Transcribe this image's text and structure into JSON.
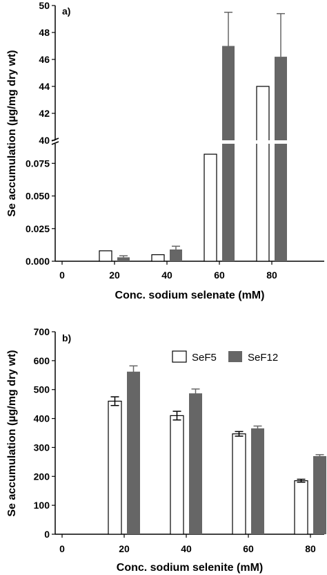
{
  "chart_data": [
    {
      "type": "bar",
      "panel_label": "a)",
      "xlabel": "Conc. sodium selenate (mM)",
      "ylabel": "Se accumulation (µg/mg dry wt)",
      "categories": [
        "0",
        "20",
        "40",
        "60",
        "80"
      ],
      "axis_break": true,
      "y_lower_range": [
        0,
        0.09
      ],
      "y_upper_range": [
        40,
        50
      ],
      "y_lower_ticks": [
        "0.000",
        "0.025",
        "0.050",
        "0.075"
      ],
      "y_upper_ticks": [
        "40",
        "42",
        "44",
        "46",
        "48",
        "50"
      ],
      "series": [
        {
          "color": "#ffffff",
          "values": [
            0,
            0.008,
            0.005,
            0.082,
            44.0
          ],
          "errors": [
            0,
            0,
            0,
            0,
            0
          ]
        },
        {
          "color": "#666666",
          "values": [
            0,
            0.003,
            0.009,
            47.0,
            46.2
          ],
          "errors": [
            0,
            0.0012,
            0.0025,
            2.5,
            3.2
          ]
        }
      ],
      "grid": false
    },
    {
      "type": "bar",
      "panel_label": "b)",
      "xlabel": "Conc. sodium selenite (mM)",
      "ylabel": "Se accumulation (µg/mg  dry wt)",
      "categories": [
        "0",
        "20",
        "40",
        "60",
        "80"
      ],
      "ylim": [
        0,
        700
      ],
      "y_ticks": [
        "0",
        "100",
        "200",
        "300",
        "400",
        "500",
        "600",
        "700"
      ],
      "legend_position": "top-right",
      "series": [
        {
          "name": "SeF5",
          "color": "#ffffff",
          "values": [
            0,
            460,
            410,
            347,
            185
          ],
          "errors": [
            0,
            15,
            15,
            8,
            5
          ]
        },
        {
          "name": "SeF12",
          "color": "#666666",
          "values": [
            0,
            562,
            487,
            366,
            270
          ],
          "errors": [
            0,
            20,
            15,
            8,
            5
          ]
        }
      ],
      "grid": false
    }
  ]
}
